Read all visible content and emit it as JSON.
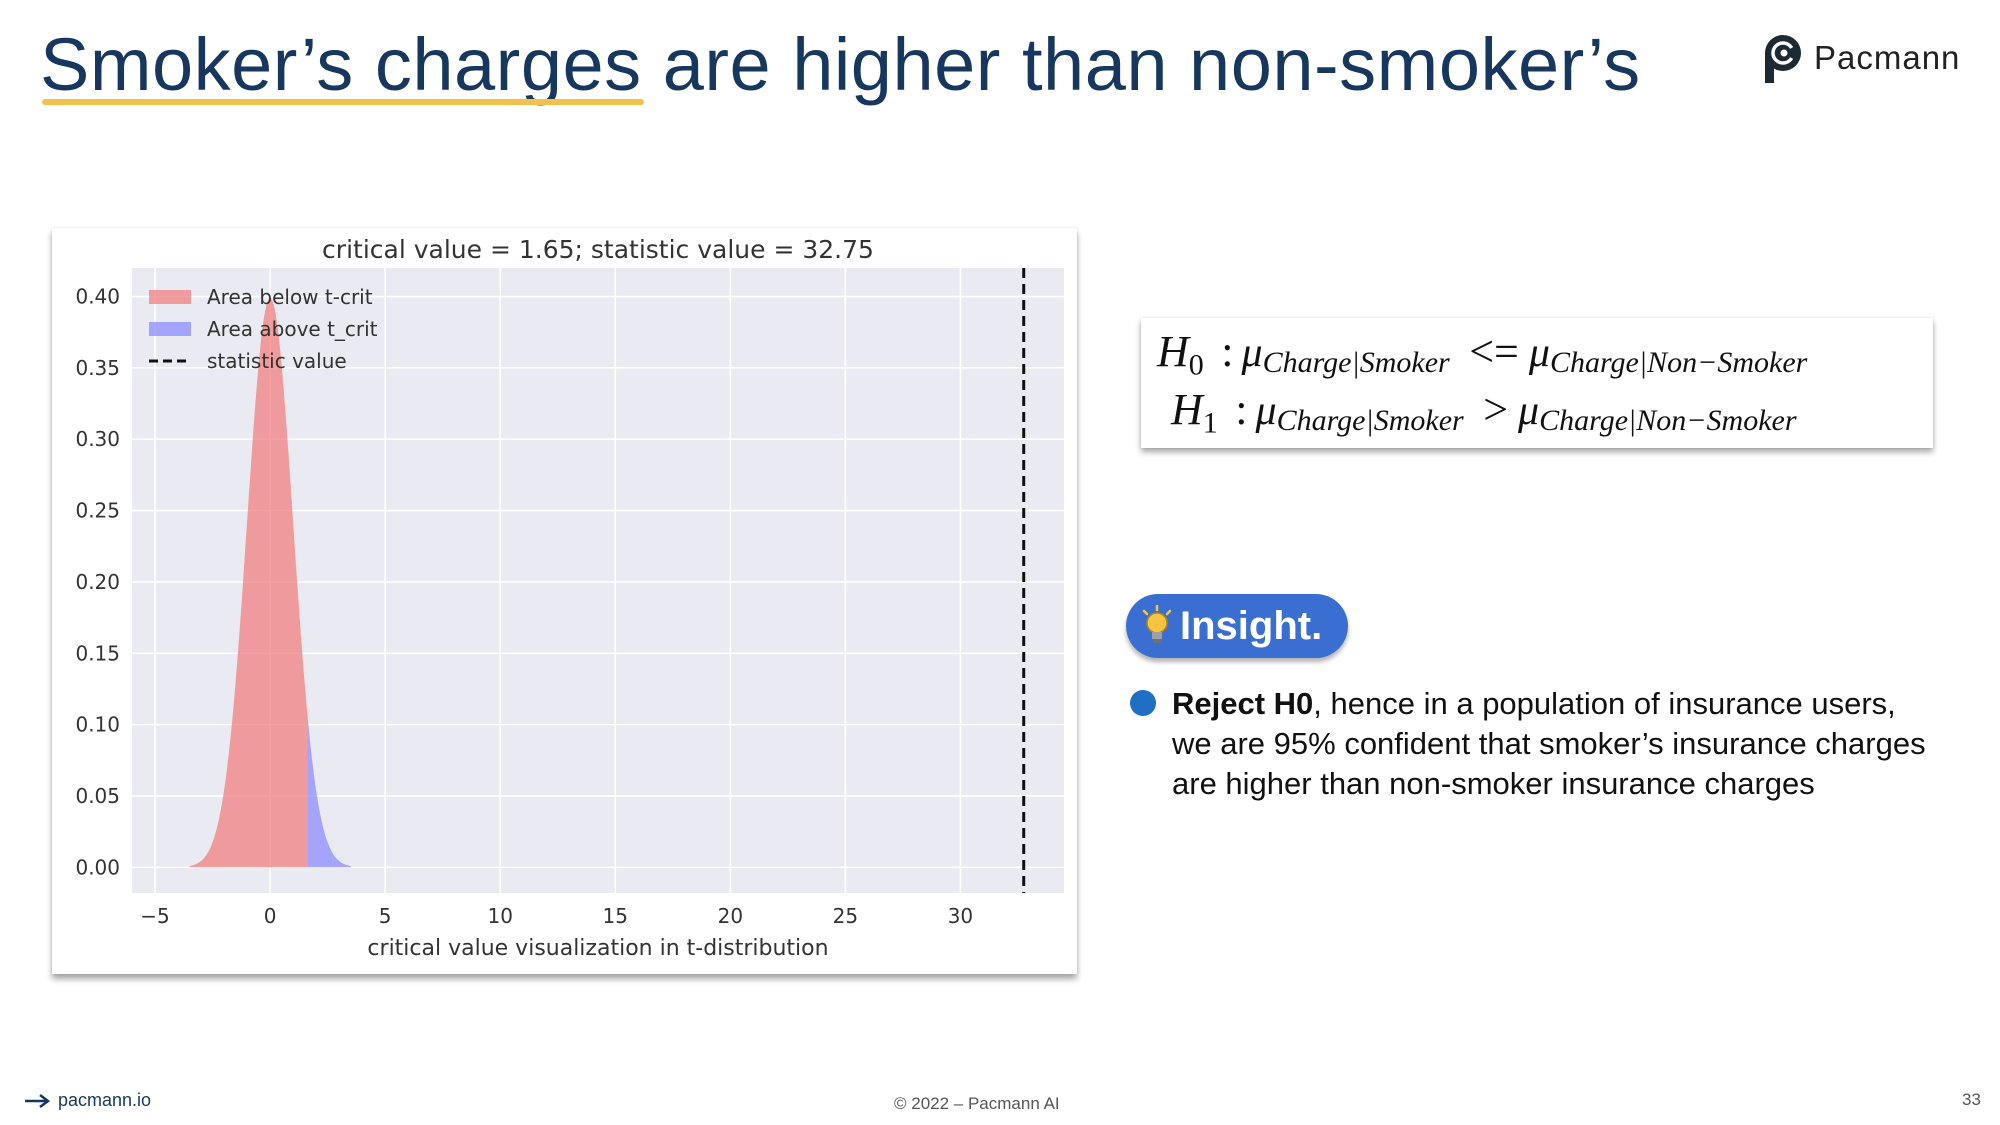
{
  "slide": {
    "title_highlight": "Smoker’s charges",
    "title_rest": " are higher than non-smoker’s",
    "logo_text": "Pacmann",
    "footer_link": "pacmann.io",
    "copyright": "© 2022 – Pacmann AI",
    "page_number": "33"
  },
  "hypotheses": {
    "h0": {
      "label": "H",
      "sub": "0",
      "lhs": "Charge|Smoker",
      "op": "<=",
      "rhs": "Charge|Non−Smoker"
    },
    "h1": {
      "label": "H",
      "sub": "1",
      "lhs": "Charge|Smoker",
      "op": ">",
      "rhs": "Charge|Non−Smoker"
    }
  },
  "insight": {
    "label": "Insight.",
    "bold": "Reject H0",
    "text": ", hence in a population of insurance users, we are 95% confident that smoker’s insurance charges are higher than non-smoker insurance charges"
  },
  "chart_data": {
    "type": "area",
    "title": "critical value = 1.65; statistic value = 32.75",
    "xlabel": "critical value visualization in t-distribution",
    "ylabel": "",
    "xlim": [
      -6,
      34.5
    ],
    "ylim": [
      -0.018,
      0.42
    ],
    "xticks": [
      -5,
      0,
      5,
      10,
      15,
      20,
      25,
      30
    ],
    "xtick_labels": [
      "−5",
      "0",
      "5",
      "10",
      "15",
      "20",
      "25",
      "30"
    ],
    "yticks": [
      0.0,
      0.05,
      0.1,
      0.15,
      0.2,
      0.25,
      0.3,
      0.35,
      0.4
    ],
    "ytick_labels": [
      "0.00",
      "0.05",
      "0.10",
      "0.15",
      "0.20",
      "0.25",
      "0.30",
      "0.35",
      "0.40"
    ],
    "grid": true,
    "legend_position": "top-left",
    "critical_value": 1.65,
    "statistic_value": 32.75,
    "series": [
      {
        "name": "Area below t-crit",
        "color": "#f08080",
        "x_range": [
          -3.5,
          1.65
        ]
      },
      {
        "name": "Area above t_crit",
        "color": "#8c8cff",
        "x_range": [
          1.65,
          3.5
        ]
      },
      {
        "name": "statistic value",
        "color": "#000000",
        "x": 32.75
      }
    ]
  }
}
